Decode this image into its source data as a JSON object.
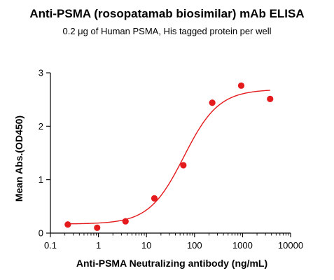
{
  "chart_data": {
    "type": "scatter",
    "title": "Anti-PSMA (rosopatamab biosimilar) mAb ELISA",
    "subtitle": "0.2 μg of Human PSMA, His tagged protein per well",
    "xlabel": "Anti-PSMA Neutralizing antibody (ng/mL)",
    "ylabel": "Mean Abs.(OD450)",
    "x_scale": "log",
    "xlim": [
      0.1,
      10000
    ],
    "ylim": [
      0,
      3
    ],
    "x_ticks": [
      0.1,
      1,
      10,
      100,
      1000,
      10000
    ],
    "x_tick_labels": [
      "0.1",
      "1",
      "10",
      "100",
      "1000",
      "10000"
    ],
    "y_ticks": [
      0,
      1,
      2,
      3
    ],
    "y_tick_labels": [
      "0",
      "1",
      "2",
      "3"
    ],
    "grid": false,
    "legend": "none",
    "color": "#e41a1c",
    "points": [
      {
        "x": 0.23,
        "y": 0.16
      },
      {
        "x": 0.94,
        "y": 0.1
      },
      {
        "x": 3.66,
        "y": 0.22
      },
      {
        "x": 14.6,
        "y": 0.65
      },
      {
        "x": 58.6,
        "y": 1.27
      },
      {
        "x": 234,
        "y": 2.44
      },
      {
        "x": 937,
        "y": 2.76
      },
      {
        "x": 3750,
        "y": 2.51
      }
    ],
    "fit": {
      "model": "4PL",
      "bottom": 0.17,
      "top": 2.69,
      "ec50": 60,
      "hill": 1.2,
      "x_range": [
        0.23,
        3750
      ]
    }
  }
}
